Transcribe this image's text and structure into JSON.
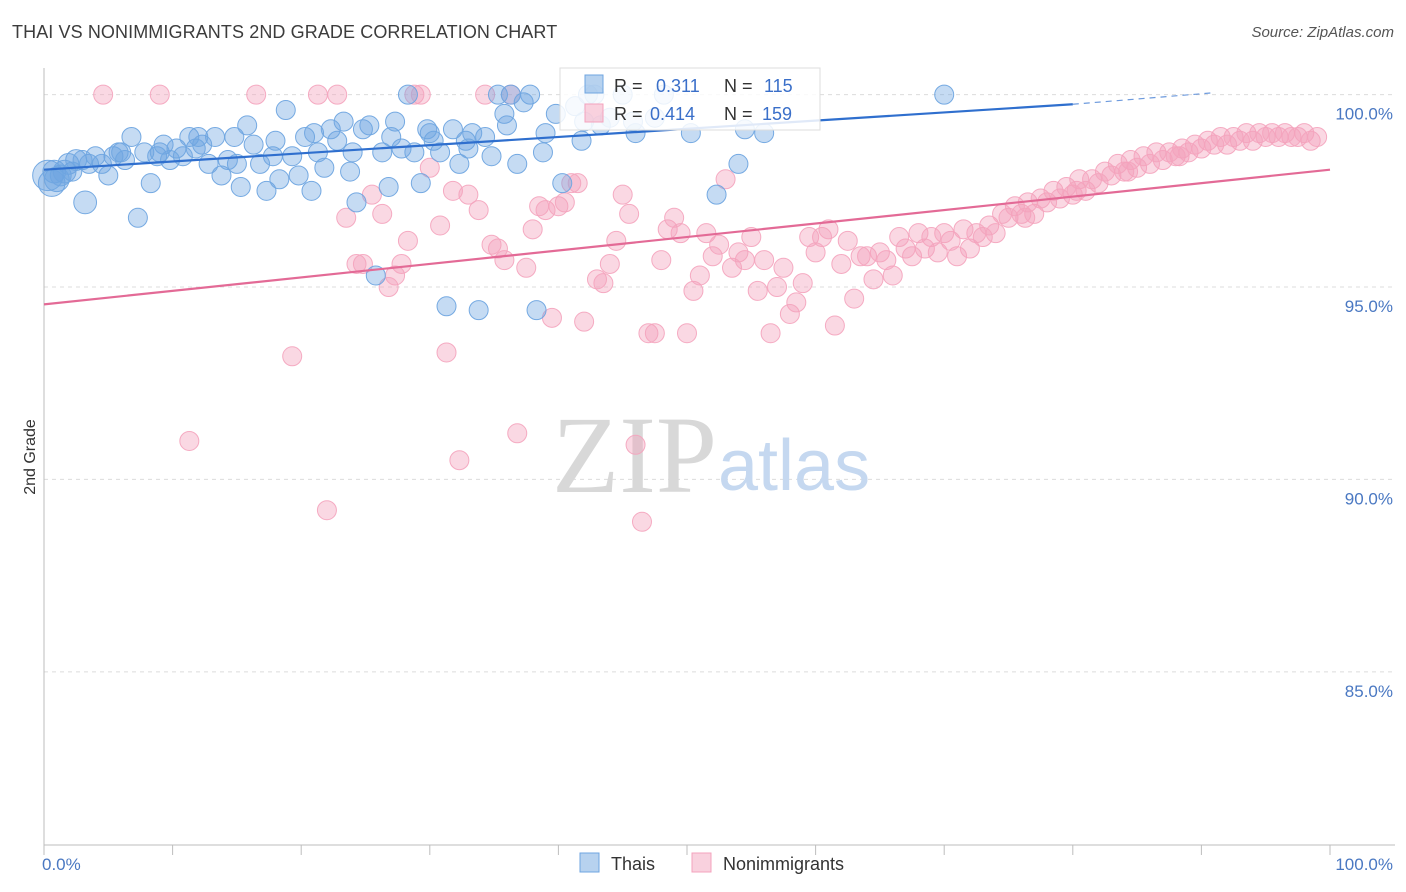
{
  "title": "THAI VS NONIMMIGRANTS 2ND GRADE CORRELATION CHART",
  "source": "Source: ZipAtlas.com",
  "watermark": {
    "zip": "ZIP",
    "atlas": "atlas"
  },
  "colors": {
    "thais": "#6fa5e0",
    "thais_line": "#2f6fce",
    "nonimmigrants": "#f4a3bd",
    "nonimmigrants_line": "#e36a96",
    "tick_text": "#4a78c2",
    "grid": "#dcdcdc"
  },
  "chart_data": {
    "type": "scatter",
    "title": "THAI VS NONIMMIGRANTS 2ND GRADE CORRELATION CHART",
    "xlabel": "",
    "ylabel": "2nd Grade",
    "xlim": [
      0,
      100
    ],
    "ylim": [
      80.5,
      100.9
    ],
    "x_tick_labels": [
      "0.0%",
      "100.0%"
    ],
    "y_ticks": [
      100,
      95,
      90,
      85
    ],
    "y_tick_labels": [
      "100.0%",
      "95.0%",
      "90.0%",
      "85.0%"
    ],
    "grid": "horizontal dashed",
    "legend_position": "bottom-center",
    "stats": [
      {
        "r_label": "R =",
        "r_value": "0.311",
        "n_label": "N =",
        "n_value": "115"
      },
      {
        "r_label": "R =",
        "r_value": "0.414",
        "n_label": "N =",
        "n_value": "159"
      }
    ],
    "series": [
      {
        "name": "Thais",
        "trend": {
          "x": [
            0,
            80,
            91
          ],
          "y": [
            98.05,
            99.75,
            100.05
          ]
        },
        "points": [
          [
            0.3,
            97.9
          ],
          [
            0.6,
            97.7
          ],
          [
            0.8,
            98.0
          ],
          [
            1.0,
            97.8
          ],
          [
            1.3,
            97.9
          ],
          [
            1.6,
            98.0
          ],
          [
            1.9,
            98.2
          ],
          [
            2.2,
            98.0
          ],
          [
            2.5,
            98.3
          ],
          [
            3.2,
            97.2
          ],
          [
            3.5,
            98.2
          ],
          [
            4.0,
            98.4
          ],
          [
            4.5,
            98.2
          ],
          [
            5.0,
            97.9
          ],
          [
            5.4,
            98.4
          ],
          [
            5.8,
            98.5
          ],
          [
            6.3,
            98.3
          ],
          [
            6.8,
            98.9
          ],
          [
            7.3,
            96.8
          ],
          [
            7.8,
            98.5
          ],
          [
            8.3,
            97.7
          ],
          [
            8.8,
            98.4
          ],
          [
            9.3,
            98.7
          ],
          [
            9.8,
            98.3
          ],
          [
            10.3,
            98.6
          ],
          [
            10.8,
            98.4
          ],
          [
            11.3,
            98.9
          ],
          [
            11.8,
            98.6
          ],
          [
            12.3,
            98.7
          ],
          [
            12.8,
            98.2
          ],
          [
            13.3,
            98.9
          ],
          [
            13.8,
            97.9
          ],
          [
            14.3,
            98.3
          ],
          [
            14.8,
            98.9
          ],
          [
            15.3,
            97.6
          ],
          [
            15.8,
            99.2
          ],
          [
            16.3,
            98.7
          ],
          [
            16.8,
            98.2
          ],
          [
            17.3,
            97.5
          ],
          [
            17.8,
            98.4
          ],
          [
            18.3,
            97.8
          ],
          [
            18.8,
            99.6
          ],
          [
            19.3,
            98.4
          ],
          [
            19.8,
            97.9
          ],
          [
            20.3,
            98.9
          ],
          [
            20.8,
            97.5
          ],
          [
            21.3,
            98.5
          ],
          [
            21.8,
            98.1
          ],
          [
            22.3,
            99.1
          ],
          [
            22.8,
            98.8
          ],
          [
            23.3,
            99.3
          ],
          [
            23.8,
            98.0
          ],
          [
            24.3,
            97.2
          ],
          [
            24.8,
            99.1
          ],
          [
            25.3,
            99.2
          ],
          [
            25.8,
            95.3
          ],
          [
            26.3,
            98.5
          ],
          [
            26.8,
            97.6
          ],
          [
            27.3,
            99.3
          ],
          [
            27.8,
            98.6
          ],
          [
            28.3,
            100.0
          ],
          [
            28.8,
            98.5
          ],
          [
            29.3,
            97.7
          ],
          [
            29.8,
            99.1
          ],
          [
            30.3,
            98.8
          ],
          [
            30.8,
            98.5
          ],
          [
            31.3,
            94.5
          ],
          [
            31.8,
            99.1
          ],
          [
            32.3,
            98.2
          ],
          [
            32.8,
            98.8
          ],
          [
            33.3,
            99.0
          ],
          [
            33.8,
            94.4
          ],
          [
            34.3,
            98.9
          ],
          [
            34.8,
            98.4
          ],
          [
            35.3,
            100.0
          ],
          [
            35.8,
            99.5
          ],
          [
            36.3,
            100.0
          ],
          [
            36.8,
            98.2
          ],
          [
            37.3,
            99.8
          ],
          [
            37.8,
            100.0
          ],
          [
            38.3,
            94.4
          ],
          [
            38.8,
            98.5
          ],
          [
            39.8,
            99.5
          ],
          [
            40.3,
            97.7
          ],
          [
            41.3,
            99.7
          ],
          [
            41.8,
            98.8
          ],
          [
            42.3,
            100.0
          ],
          [
            42.8,
            100.0
          ],
          [
            43.3,
            99.2
          ],
          [
            44.0,
            99.4
          ],
          [
            45.0,
            100.0
          ],
          [
            45.8,
            99.3
          ],
          [
            47.5,
            99.4
          ],
          [
            48.2,
            100.0
          ],
          [
            50.3,
            99.0
          ],
          [
            52.3,
            97.4
          ],
          [
            54.0,
            98.2
          ],
          [
            54.5,
            99.1
          ],
          [
            56.0,
            99.0
          ],
          [
            70.0,
            100.0
          ],
          [
            3.0,
            98.3
          ],
          [
            6.0,
            98.5
          ],
          [
            9.0,
            98.5
          ],
          [
            12.0,
            98.9
          ],
          [
            15.0,
            98.2
          ],
          [
            18.0,
            98.8
          ],
          [
            21.0,
            99.0
          ],
          [
            24.0,
            98.5
          ],
          [
            27.0,
            98.9
          ],
          [
            30.0,
            99.0
          ],
          [
            33.0,
            98.6
          ],
          [
            36.0,
            99.2
          ],
          [
            39.0,
            99.0
          ],
          [
            42.0,
            99.3
          ],
          [
            46.0,
            99.0
          ]
        ],
        "sizes": [
          16,
          14,
          12,
          13,
          11,
          12,
          11,
          10,
          11,
          12,
          10,
          10,
          10,
          10,
          10,
          10,
          10,
          10,
          10,
          10,
          10,
          10,
          10,
          10,
          10,
          10,
          10,
          10,
          10,
          10,
          10,
          10,
          10,
          10,
          10,
          10,
          10,
          10,
          10,
          10,
          10,
          10,
          10,
          10,
          10,
          10,
          10,
          10,
          10,
          10,
          10,
          10,
          10,
          10,
          10,
          10,
          10,
          10,
          10,
          10,
          10,
          10,
          10,
          10,
          10,
          10,
          10,
          10,
          10,
          10,
          10,
          10,
          10,
          10,
          10,
          10,
          10,
          10,
          10,
          10,
          10,
          10,
          10,
          10,
          10,
          10,
          10,
          10,
          10,
          10,
          10,
          10,
          10,
          10,
          10,
          10,
          10,
          10,
          10,
          10,
          10,
          10,
          10,
          10,
          10,
          10,
          10,
          10,
          10,
          10,
          10,
          10,
          10,
          10,
          10
        ]
      },
      {
        "name": "Nonimmigrants",
        "trend": {
          "x": [
            0,
            100
          ],
          "y": [
            94.55,
            98.05
          ]
        },
        "points": [
          [
            4.6,
            100.0
          ],
          [
            9.0,
            100.0
          ],
          [
            11.3,
            91.0
          ],
          [
            16.5,
            100.0
          ],
          [
            19.3,
            93.2
          ],
          [
            21.3,
            100.0
          ],
          [
            22.0,
            89.2
          ],
          [
            22.8,
            100.0
          ],
          [
            23.5,
            96.8
          ],
          [
            24.3,
            95.6
          ],
          [
            24.8,
            95.6
          ],
          [
            25.5,
            97.4
          ],
          [
            26.3,
            96.9
          ],
          [
            26.8,
            95.0
          ],
          [
            27.3,
            95.3
          ],
          [
            27.8,
            95.6
          ],
          [
            28.3,
            96.2
          ],
          [
            28.8,
            100.0
          ],
          [
            29.3,
            100.0
          ],
          [
            30.0,
            98.1
          ],
          [
            30.8,
            96.6
          ],
          [
            31.3,
            93.3
          ],
          [
            31.8,
            97.5
          ],
          [
            32.3,
            90.5
          ],
          [
            33.0,
            97.4
          ],
          [
            33.8,
            97.0
          ],
          [
            34.3,
            100.0
          ],
          [
            34.8,
            96.1
          ],
          [
            35.3,
            96.0
          ],
          [
            35.8,
            95.7
          ],
          [
            36.3,
            100.0
          ],
          [
            36.8,
            91.2
          ],
          [
            37.5,
            95.5
          ],
          [
            38.0,
            96.5
          ],
          [
            38.5,
            97.1
          ],
          [
            39.0,
            97.0
          ],
          [
            39.5,
            94.2
          ],
          [
            40.0,
            97.1
          ],
          [
            40.5,
            97.2
          ],
          [
            41.0,
            97.7
          ],
          [
            41.5,
            97.7
          ],
          [
            42.0,
            94.1
          ],
          [
            43.0,
            95.2
          ],
          [
            43.5,
            95.1
          ],
          [
            44.0,
            95.6
          ],
          [
            44.5,
            96.2
          ],
          [
            45.0,
            97.4
          ],
          [
            45.5,
            96.9
          ],
          [
            46.0,
            90.9
          ],
          [
            46.5,
            88.9
          ],
          [
            47.0,
            93.8
          ],
          [
            47.5,
            93.8
          ],
          [
            48.0,
            95.7
          ],
          [
            48.5,
            96.5
          ],
          [
            49.0,
            96.8
          ],
          [
            49.5,
            96.4
          ],
          [
            50.0,
            93.8
          ],
          [
            50.5,
            94.9
          ],
          [
            51.0,
            95.3
          ],
          [
            51.5,
            96.4
          ],
          [
            52.0,
            95.8
          ],
          [
            52.5,
            96.1
          ],
          [
            53.0,
            97.8
          ],
          [
            53.5,
            95.5
          ],
          [
            54.0,
            95.9
          ],
          [
            54.5,
            95.7
          ],
          [
            55.0,
            96.3
          ],
          [
            55.5,
            94.9
          ],
          [
            56.0,
            95.7
          ],
          [
            56.5,
            93.8
          ],
          [
            57.0,
            95.0
          ],
          [
            57.5,
            95.5
          ],
          [
            58.0,
            94.3
          ],
          [
            58.5,
            94.6
          ],
          [
            59.0,
            95.1
          ],
          [
            59.5,
            96.3
          ],
          [
            60.0,
            95.9
          ],
          [
            60.5,
            96.3
          ],
          [
            61.0,
            96.5
          ],
          [
            61.5,
            94.0
          ],
          [
            62.0,
            95.6
          ],
          [
            62.5,
            96.2
          ],
          [
            63.0,
            94.7
          ],
          [
            63.5,
            95.8
          ],
          [
            64.0,
            95.8
          ],
          [
            64.5,
            95.2
          ],
          [
            65.0,
            95.9
          ],
          [
            65.5,
            95.7
          ],
          [
            66.0,
            95.3
          ],
          [
            66.5,
            96.3
          ],
          [
            67.0,
            96.0
          ],
          [
            67.5,
            95.8
          ],
          [
            68.0,
            96.4
          ],
          [
            68.5,
            96.0
          ],
          [
            69.0,
            96.3
          ],
          [
            69.5,
            95.9
          ],
          [
            70.0,
            96.4
          ],
          [
            70.5,
            96.2
          ],
          [
            71.0,
            95.8
          ],
          [
            71.5,
            96.5
          ],
          [
            72.0,
            96.0
          ],
          [
            72.5,
            96.4
          ],
          [
            73.0,
            96.3
          ],
          [
            73.5,
            96.6
          ],
          [
            74.0,
            96.4
          ],
          [
            74.5,
            96.9
          ],
          [
            75.0,
            96.8
          ],
          [
            75.5,
            97.1
          ],
          [
            76.0,
            96.9
          ],
          [
            76.5,
            97.2
          ],
          [
            77.0,
            96.9
          ],
          [
            77.5,
            97.3
          ],
          [
            78.0,
            97.2
          ],
          [
            78.5,
            97.5
          ],
          [
            79.0,
            97.3
          ],
          [
            79.5,
            97.6
          ],
          [
            80.0,
            97.4
          ],
          [
            80.5,
            97.8
          ],
          [
            81.0,
            97.5
          ],
          [
            81.5,
            97.8
          ],
          [
            82.0,
            97.7
          ],
          [
            82.5,
            98.0
          ],
          [
            83.0,
            97.9
          ],
          [
            83.5,
            98.2
          ],
          [
            84.0,
            98.0
          ],
          [
            84.5,
            98.3
          ],
          [
            85.0,
            98.1
          ],
          [
            85.5,
            98.4
          ],
          [
            86.0,
            98.2
          ],
          [
            86.5,
            98.5
          ],
          [
            87.0,
            98.3
          ],
          [
            87.5,
            98.5
          ],
          [
            88.0,
            98.4
          ],
          [
            88.5,
            98.6
          ],
          [
            89.0,
            98.5
          ],
          [
            89.5,
            98.7
          ],
          [
            90.0,
            98.6
          ],
          [
            90.5,
            98.8
          ],
          [
            91.0,
            98.7
          ],
          [
            91.5,
            98.9
          ],
          [
            92.0,
            98.7
          ],
          [
            92.5,
            98.9
          ],
          [
            93.0,
            98.8
          ],
          [
            93.5,
            99.0
          ],
          [
            94.0,
            98.8
          ],
          [
            94.5,
            99.0
          ],
          [
            95.0,
            98.9
          ],
          [
            95.5,
            99.0
          ],
          [
            96.0,
            98.9
          ],
          [
            96.5,
            99.0
          ],
          [
            97.0,
            98.9
          ],
          [
            97.5,
            98.9
          ],
          [
            98.0,
            99.0
          ],
          [
            98.5,
            98.8
          ],
          [
            99.0,
            98.9
          ],
          [
            76.3,
            96.8
          ],
          [
            80.3,
            97.5
          ],
          [
            84.3,
            98.0
          ],
          [
            88.3,
            98.4
          ]
        ]
      }
    ]
  },
  "legend": {
    "items": [
      {
        "label": "Thais"
      },
      {
        "label": "Nonimmigrants"
      }
    ]
  }
}
